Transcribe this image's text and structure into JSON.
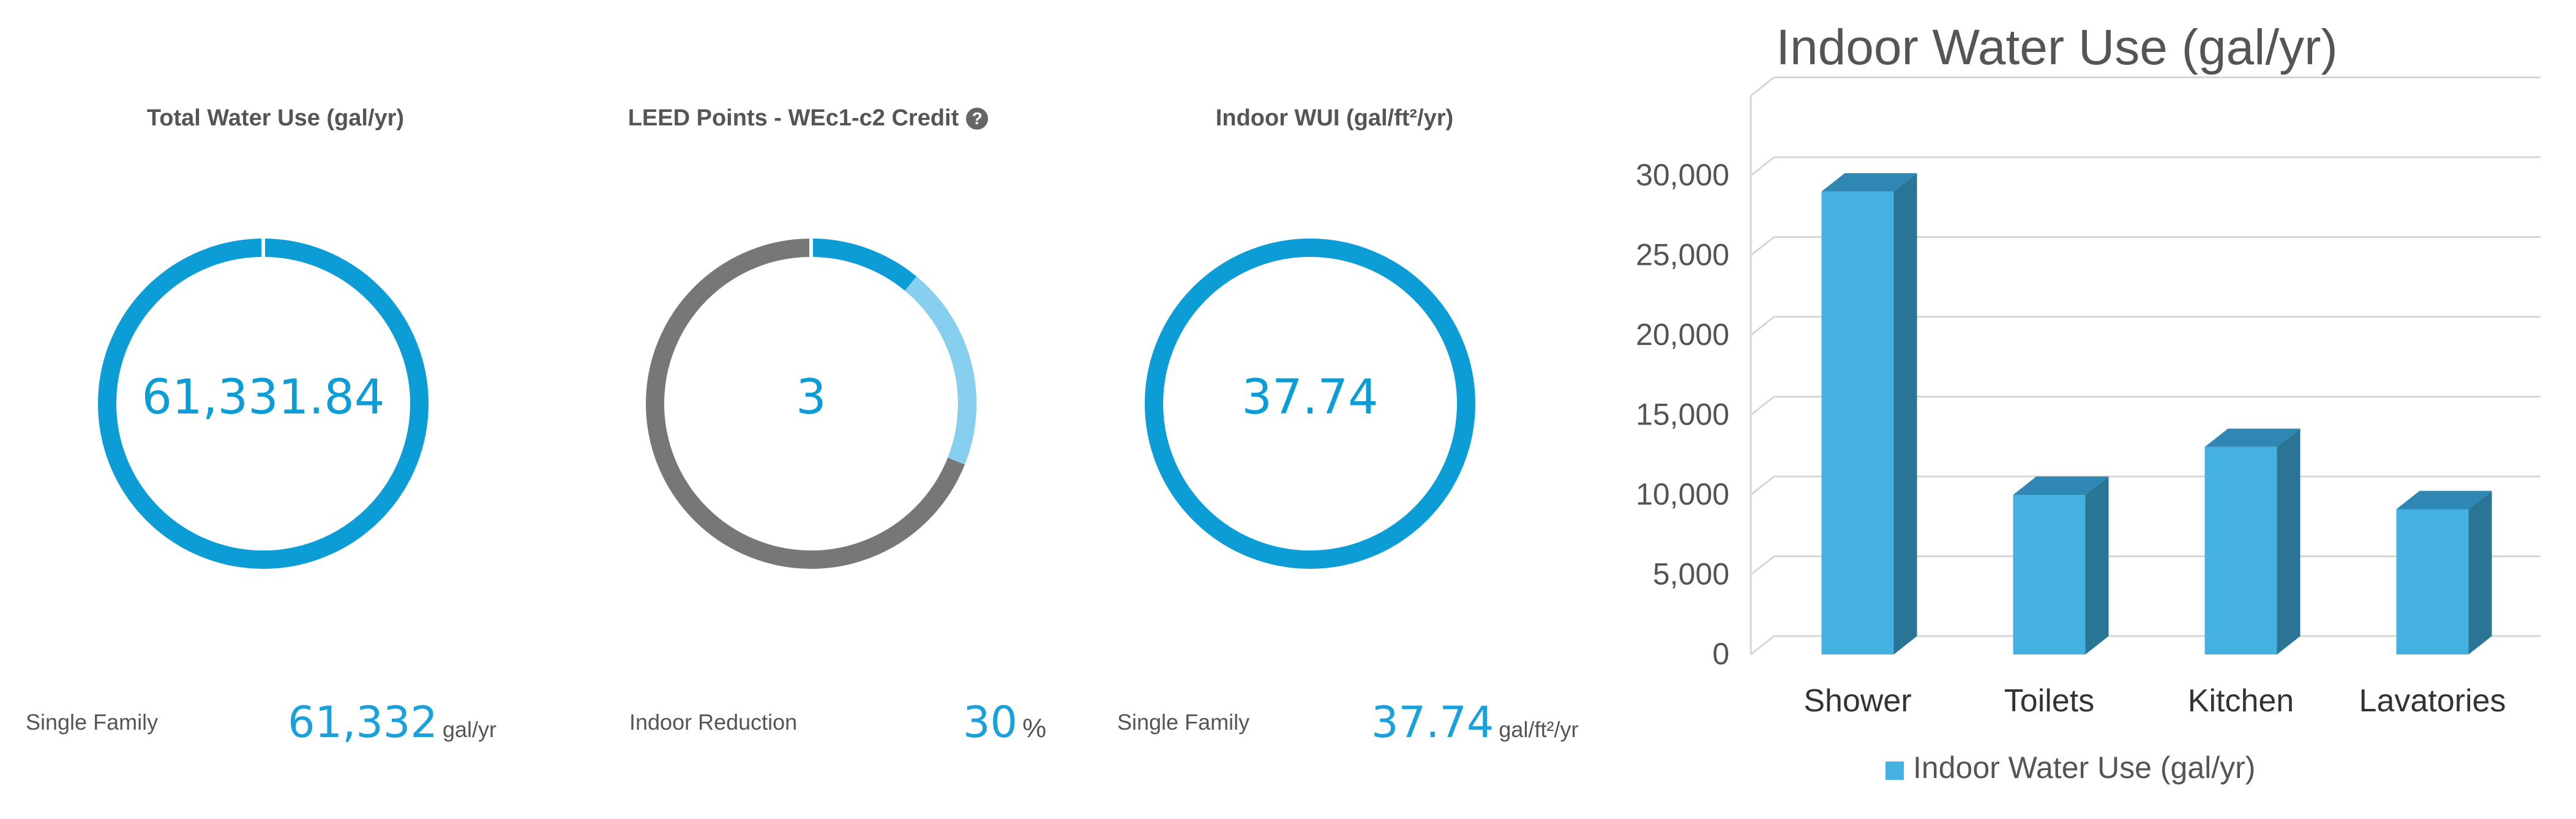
{
  "colors": {
    "accent": "#0d9dd6",
    "gauge_secondary": "#87cfef",
    "gauge_remainder": "#777777",
    "bar_front": "#45b0e2",
    "bar_side": "#2a7496",
    "bar_top": "#2f88b4"
  },
  "panels": [
    {
      "title": "Total Water Use (gal/yr)",
      "center_value": "61,331.84",
      "footer_label": "Single Family",
      "footer_value": "61,332",
      "footer_unit": "gal/yr",
      "gauge_fraction": 1.0
    },
    {
      "title": "LEED Points - WEc1-c2 Credit",
      "help_icon": "question-circle-icon",
      "center_value": "3",
      "footer_label": "Indoor Reduction",
      "footer_value": "30",
      "footer_unit": "%",
      "gauge_fraction_primary": 0.11,
      "gauge_fraction_secondary": 0.2
    },
    {
      "title": "Indoor WUI (gal/ft²/yr)",
      "center_value": "37.74",
      "footer_label": "Single Family",
      "footer_value": "37.74",
      "footer_unit": "gal/ft²/yr",
      "gauge_fraction": 1.0
    }
  ],
  "chart_data": {
    "type": "bar",
    "title": "Indoor Water Use (gal/yr)",
    "categories": [
      "Shower",
      "Toilets",
      "Kitchen",
      "Lavatories"
    ],
    "series": [
      {
        "name": "Indoor Water Use (gal/yr)",
        "values": [
          29000,
          10000,
          13000,
          9100
        ]
      }
    ],
    "yticks": [
      "0",
      "5,000",
      "10,000",
      "15,000",
      "20,000",
      "25,000",
      "30,000"
    ],
    "ylim": [
      0,
      30000
    ],
    "grid": true,
    "legend": "bottom",
    "style": "3d"
  }
}
